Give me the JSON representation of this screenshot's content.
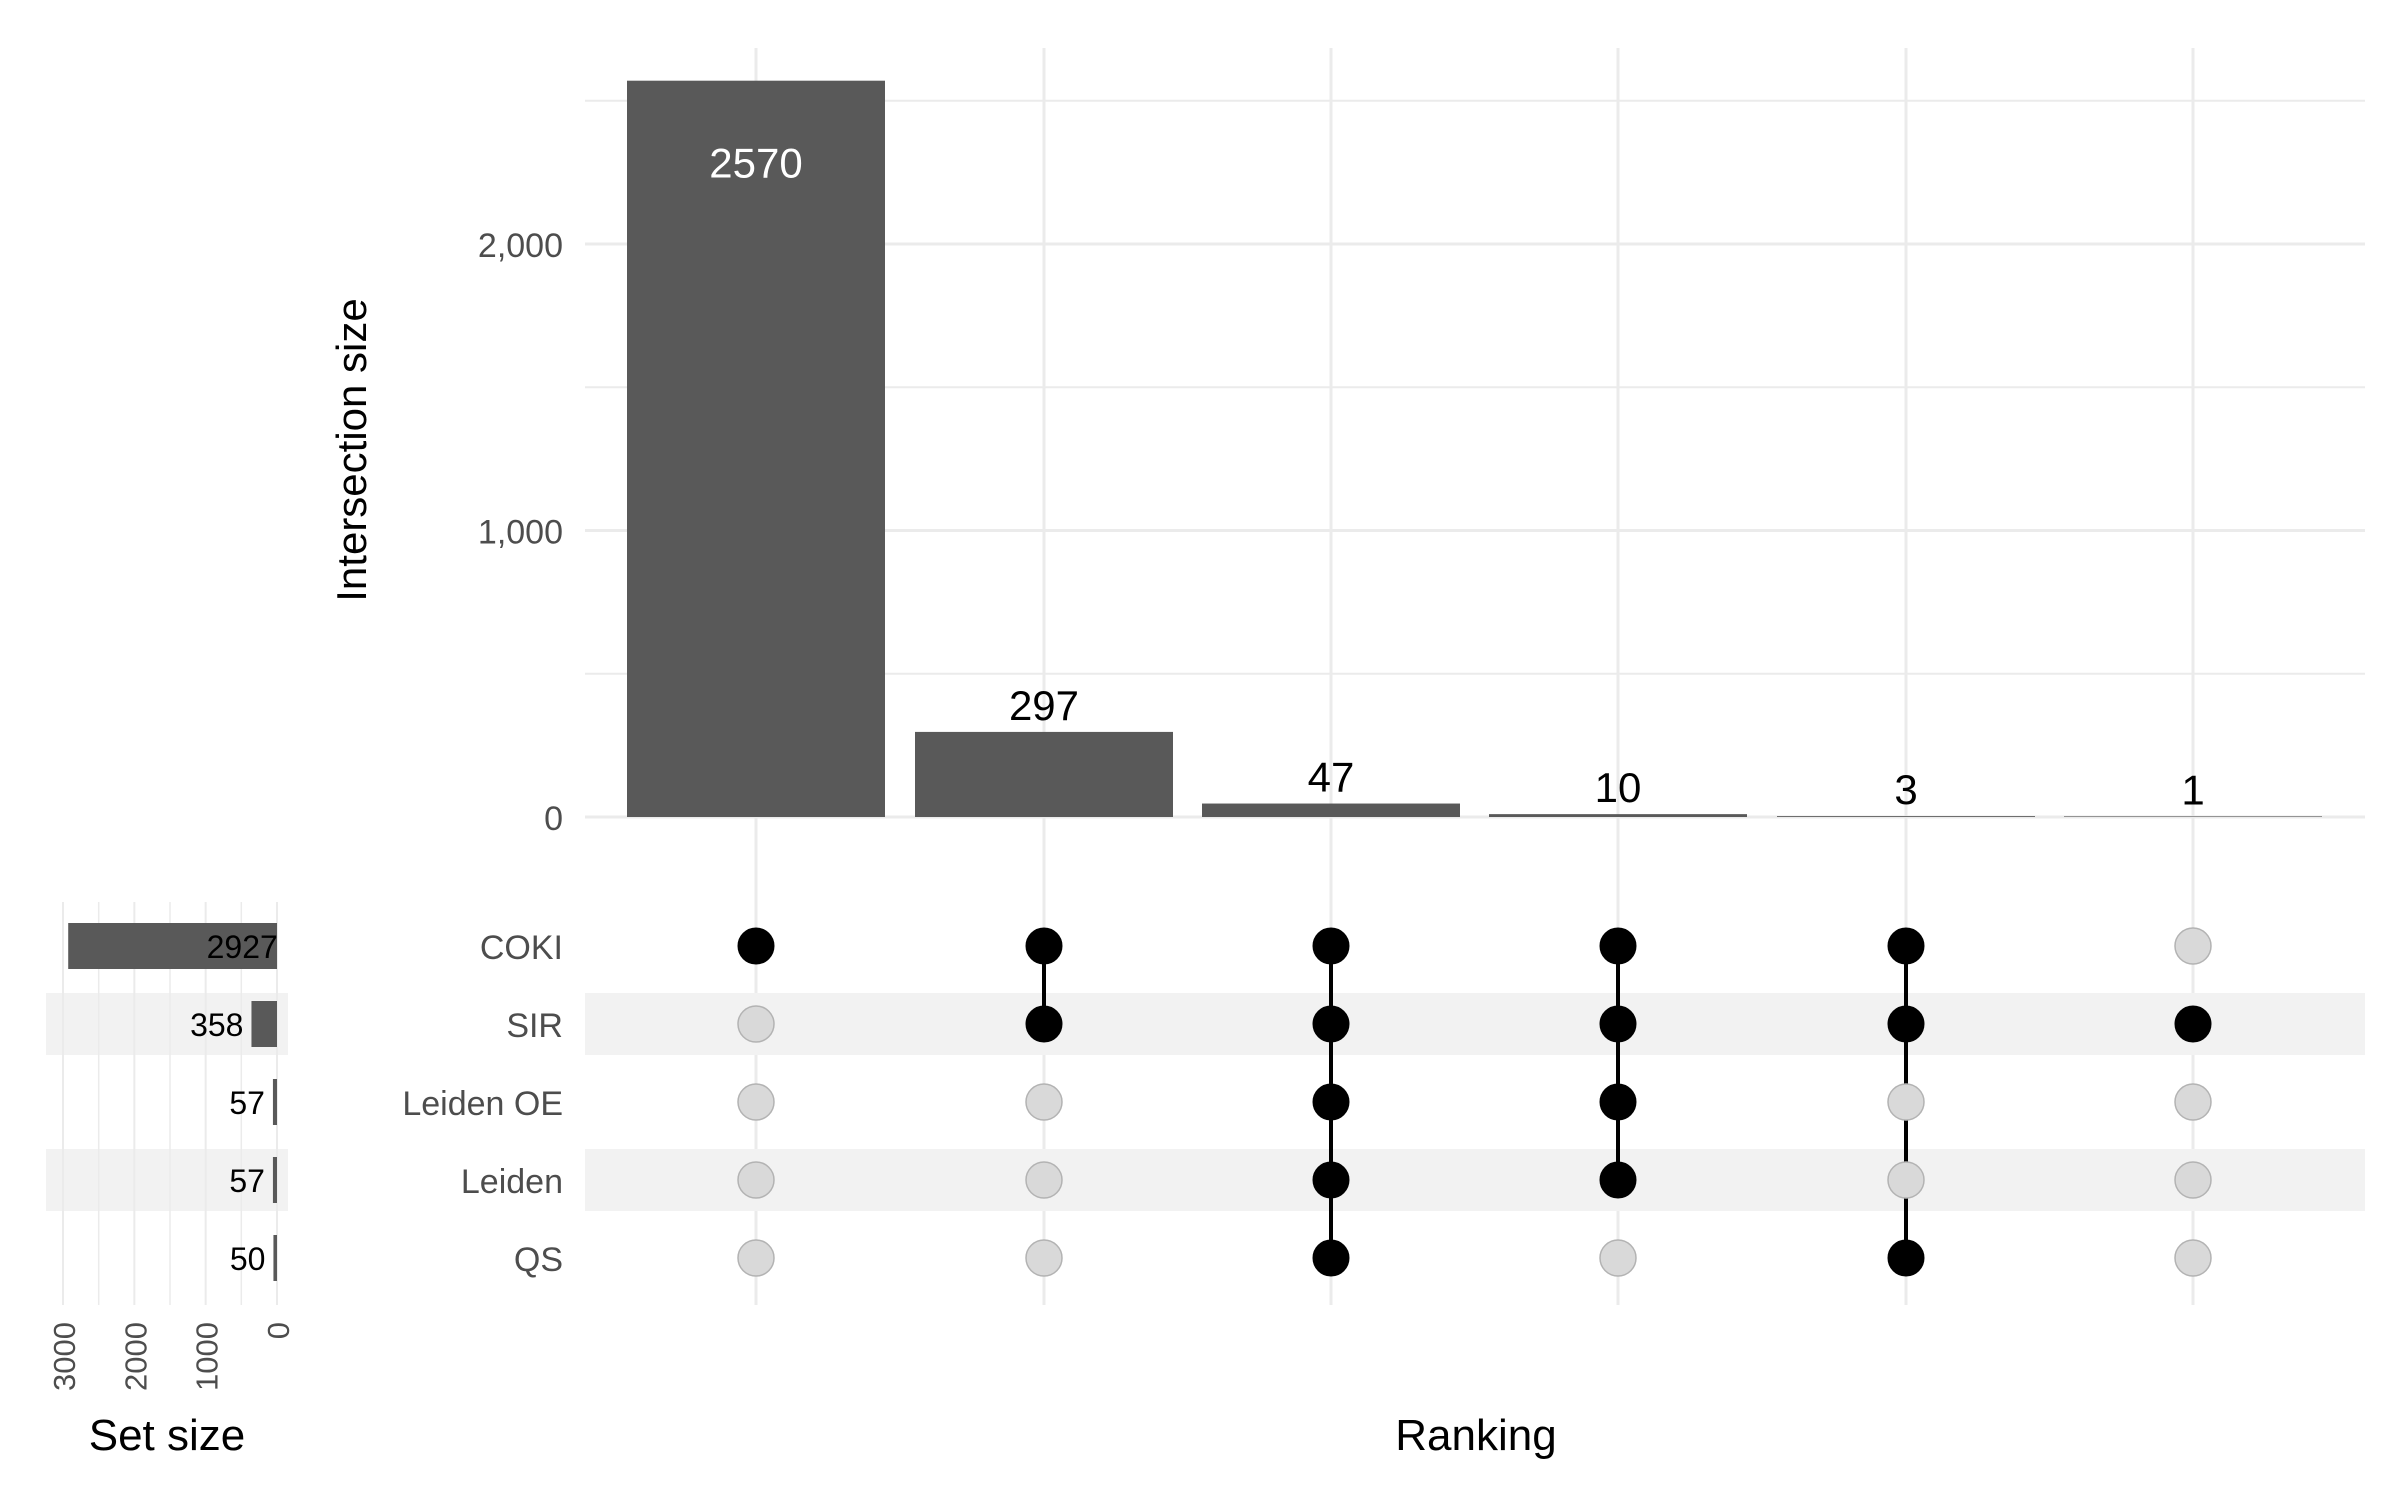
{
  "chart_data": {
    "type": "bar",
    "ylabel": "Intersection size",
    "xlabel": "Ranking",
    "set_size_label": "Set size",
    "ylim": [
      0,
      2700
    ],
    "y_ticks": [
      0,
      1000,
      2000
    ],
    "y_tick_labels": [
      "0",
      "1,000",
      "2,000"
    ],
    "grid": true,
    "colors": {
      "bar": "#595959",
      "dot_on": "#000000",
      "dot_off": "#d9d9d9",
      "stripe": "#f2f2f2",
      "grid": "#ebebeb"
    },
    "intersections": [
      {
        "value": 2570,
        "label": "2570",
        "sets": [
          "COKI"
        ]
      },
      {
        "value": 297,
        "label": "297",
        "sets": [
          "COKI",
          "SIR"
        ]
      },
      {
        "value": 47,
        "label": "47",
        "sets": [
          "COKI",
          "SIR",
          "Leiden OE",
          "Leiden",
          "QS"
        ]
      },
      {
        "value": 10,
        "label": "10",
        "sets": [
          "COKI",
          "SIR",
          "Leiden OE",
          "Leiden"
        ]
      },
      {
        "value": 3,
        "label": "3",
        "sets": [
          "COKI",
          "SIR",
          "QS"
        ]
      },
      {
        "value": 1,
        "label": "1",
        "sets": [
          "SIR"
        ]
      }
    ],
    "sets": [
      {
        "name": "COKI",
        "size": 2927,
        "label": "2927"
      },
      {
        "name": "SIR",
        "size": 358,
        "label": "358"
      },
      {
        "name": "Leiden OE",
        "size": 57,
        "label": "57"
      },
      {
        "name": "Leiden",
        "size": 57,
        "label": "57"
      },
      {
        "name": "QS",
        "size": 50,
        "label": "50"
      }
    ],
    "set_size_range": [
      0,
      3200
    ],
    "set_size_ticks": [
      3000,
      2000,
      1000,
      0
    ],
    "set_size_tick_labels": [
      "3000",
      "2000",
      "1000",
      "0"
    ]
  }
}
